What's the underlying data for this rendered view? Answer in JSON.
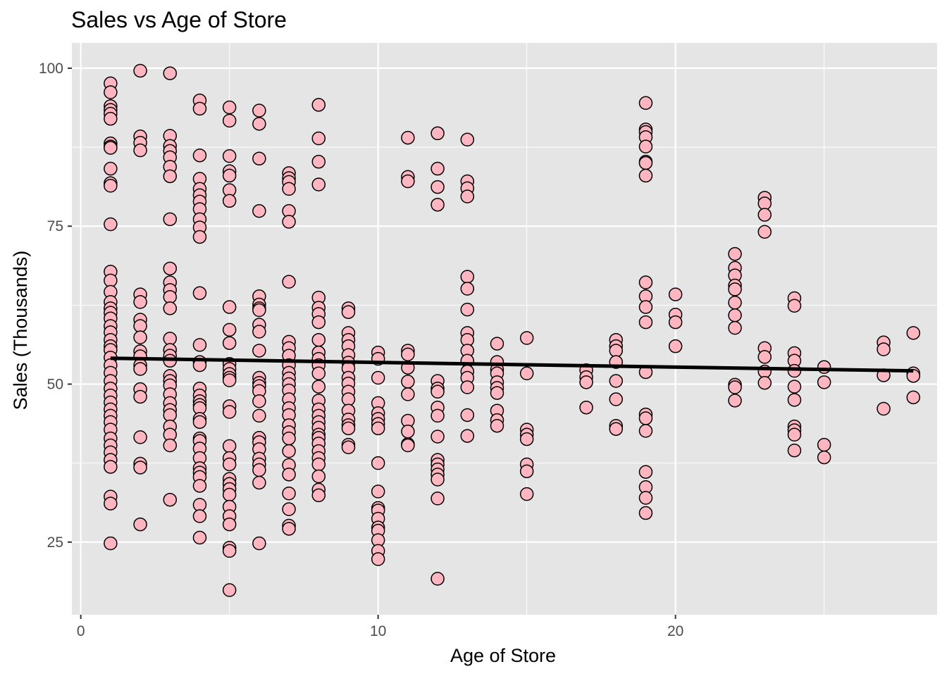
{
  "chart_data": {
    "type": "scatter",
    "title": "Sales vs Age of Store",
    "xlabel": "Age of Store",
    "ylabel": "Sales (Thousands)",
    "xlim": [
      -0.3,
      28.8
    ],
    "ylim": [
      13.5,
      104
    ],
    "xticks": [
      0,
      10,
      20
    ],
    "yticks": [
      25,
      50,
      75,
      100
    ],
    "grid": true,
    "legend": "none",
    "colors": {
      "panel": "#e5e5e5",
      "grid": "#ffffff",
      "point_fill": "#ffb6c1",
      "point_stroke": "#000000",
      "line": "#000000"
    },
    "trend_line": {
      "x": [
        1,
        28
      ],
      "y": [
        54.1,
        52.1
      ]
    },
    "series": [
      {
        "x": 1,
        "y": [
          97.6,
          96.2,
          94.0,
          93.4,
          92.8,
          92.0,
          88.1,
          87.6,
          87.4,
          84.1,
          81.8,
          81.4,
          75.3,
          67.8,
          66.4,
          64.6,
          63.0,
          62.0,
          61.3,
          60.4,
          59.2,
          58.2,
          57.0,
          56.0,
          55.4,
          54.2,
          53.0,
          51.8,
          50.5,
          49.3,
          48.2,
          47.1,
          46.0,
          45.0,
          44.0,
          42.8,
          41.4,
          40.3,
          39.2,
          38.0,
          36.9,
          32.2,
          31.1,
          24.8
        ]
      },
      {
        "x": 2,
        "y": [
          99.6,
          89.2,
          88.2,
          87.0,
          64.2,
          63.0,
          60.2,
          59.2,
          57.4,
          55.2,
          54.4,
          53.0,
          52.4,
          49.2,
          48.0,
          41.6,
          37.4,
          36.8,
          27.8
        ]
      },
      {
        "x": 3,
        "y": [
          99.2,
          89.3,
          87.7,
          86.9,
          85.9,
          84.4,
          82.9,
          76.1,
          68.3,
          66.1,
          64.9,
          63.8,
          62.0,
          57.2,
          55.4,
          54.5,
          53.7,
          51.3,
          50.5,
          49.8,
          48.4,
          47.0,
          45.9,
          45.1,
          43.3,
          42.0,
          40.3,
          31.7
        ]
      },
      {
        "x": 4,
        "y": [
          94.9,
          93.6,
          86.2,
          82.5,
          80.9,
          79.9,
          78.9,
          77.7,
          76.1,
          74.8,
          73.3,
          64.4,
          56.2,
          53.5,
          53.0,
          49.3,
          48.2,
          47.3,
          46.7,
          46.2,
          44.5,
          44.0,
          41.4,
          41.0,
          39.8,
          38.3,
          36.7,
          36.0,
          35.3,
          33.9,
          30.9,
          29.1,
          25.7
        ]
      },
      {
        "x": 5,
        "y": [
          93.8,
          91.7,
          86.1,
          83.7,
          83.0,
          80.7,
          79.0,
          62.2,
          58.6,
          56.5,
          53.2,
          52.4,
          51.6,
          51.0,
          50.6,
          46.5,
          45.6,
          40.2,
          38.3,
          37.3,
          35.0,
          34.2,
          33.4,
          32.5,
          30.6,
          29.1,
          27.8,
          24.1,
          23.6,
          17.4
        ]
      },
      {
        "x": 6,
        "y": [
          93.3,
          91.2,
          85.7,
          77.4,
          63.9,
          62.6,
          62.0,
          61.7,
          59.4,
          58.3,
          55.3,
          51.0,
          50.2,
          49.7,
          48.9,
          47.3,
          45.0,
          41.5,
          40.8,
          39.7,
          38.2,
          37.3,
          36.4,
          34.4,
          24.8
        ]
      },
      {
        "x": 7,
        "y": [
          83.4,
          82.6,
          82.0,
          80.9,
          77.4,
          75.7,
          66.2,
          56.7,
          55.7,
          54.5,
          53.0,
          51.8,
          50.9,
          50.0,
          49.0,
          47.6,
          46.2,
          45.1,
          43.5,
          42.4,
          41.4,
          39.4,
          37.2,
          35.7,
          32.7,
          30.2,
          27.6,
          27.1
        ]
      },
      {
        "x": 8,
        "y": [
          94.2,
          88.9,
          85.2,
          81.6,
          63.7,
          62.1,
          61.1,
          59.8,
          57.0,
          55.0,
          54.0,
          53.0,
          51.7,
          49.6,
          47.4,
          46.0,
          45.0,
          44.0,
          43.1,
          42.0,
          41.5,
          40.6,
          39.4,
          38.3,
          37.3,
          35.4,
          33.3,
          32.4
        ]
      },
      {
        "x": 9,
        "y": [
          62.0,
          61.4,
          58.1,
          57.0,
          56.0,
          54.6,
          53.4,
          52.5,
          51.0,
          50.1,
          48.8,
          47.6,
          45.8,
          44.4,
          43.5,
          43.0,
          40.4,
          40.0
        ]
      },
      {
        "x": 10,
        "y": [
          55.0,
          54.0,
          51.0,
          47.0,
          45.4,
          44.5,
          43.7,
          43.0,
          37.5,
          33.0,
          30.4,
          30.0,
          28.7,
          27.3,
          26.8,
          25.3,
          23.6,
          22.3
        ]
      },
      {
        "x": 11,
        "y": [
          89.0,
          82.8,
          82.1,
          55.3,
          54.7,
          52.6,
          50.4,
          48.4,
          44.2,
          42.5,
          40.5,
          40.3
        ]
      },
      {
        "x": 12,
        "y": [
          89.7,
          84.1,
          81.2,
          78.4,
          50.5,
          49.3,
          48.8,
          46.3,
          45.0,
          41.7,
          38.0,
          37.3,
          36.5,
          35.7,
          34.9,
          31.9,
          19.2
        ]
      },
      {
        "x": 13,
        "y": [
          88.7,
          82.1,
          81.0,
          79.7,
          67.0,
          65.1,
          61.8,
          58.1,
          57.0,
          55.3,
          53.7,
          52.0,
          51.0,
          49.5,
          45.1,
          41.8
        ]
      },
      {
        "x": 14,
        "y": [
          56.4,
          53.5,
          52.3,
          51.7,
          50.3,
          49.4,
          48.6,
          45.8,
          44.3,
          43.4
        ]
      },
      {
        "x": 15,
        "y": [
          57.3,
          51.7,
          42.8,
          42.0,
          41.3,
          37.3,
          36.2,
          32.6
        ]
      },
      {
        "x": 17,
        "y": [
          52.2,
          51.1,
          50.3,
          46.3
        ]
      },
      {
        "x": 18,
        "y": [
          57.0,
          56.0,
          55.3,
          53.5,
          50.5,
          47.6,
          43.4,
          42.9
        ]
      },
      {
        "x": 19,
        "y": [
          94.5,
          90.3,
          89.9,
          89.1,
          87.6,
          85.2,
          85.0,
          83.0,
          66.1,
          63.9,
          62.2,
          59.8,
          51.9,
          45.2,
          44.6,
          42.6,
          36.1,
          33.7,
          32.0,
          29.6
        ]
      },
      {
        "x": 20,
        "y": [
          64.2,
          61.0,
          59.8,
          56.0
        ]
      },
      {
        "x": 22,
        "y": [
          70.6,
          68.4,
          67.2,
          65.6,
          65.0,
          62.9,
          60.9,
          58.9,
          49.9,
          49.5,
          47.4
        ]
      },
      {
        "x": 23,
        "y": [
          79.5,
          78.6,
          76.8,
          74.1,
          55.7,
          54.3,
          52.0,
          50.2
        ]
      },
      {
        "x": 24,
        "y": [
          63.6,
          62.4,
          54.9,
          53.7,
          52.1,
          49.6,
          47.5,
          43.3,
          42.7,
          42.0,
          39.5
        ]
      },
      {
        "x": 25,
        "y": [
          52.7,
          50.3,
          40.4,
          38.4
        ]
      },
      {
        "x": 27,
        "y": [
          56.6,
          55.5,
          51.4,
          46.1
        ]
      },
      {
        "x": 28,
        "y": [
          58.1,
          51.7,
          51.3,
          47.9
        ]
      }
    ]
  }
}
